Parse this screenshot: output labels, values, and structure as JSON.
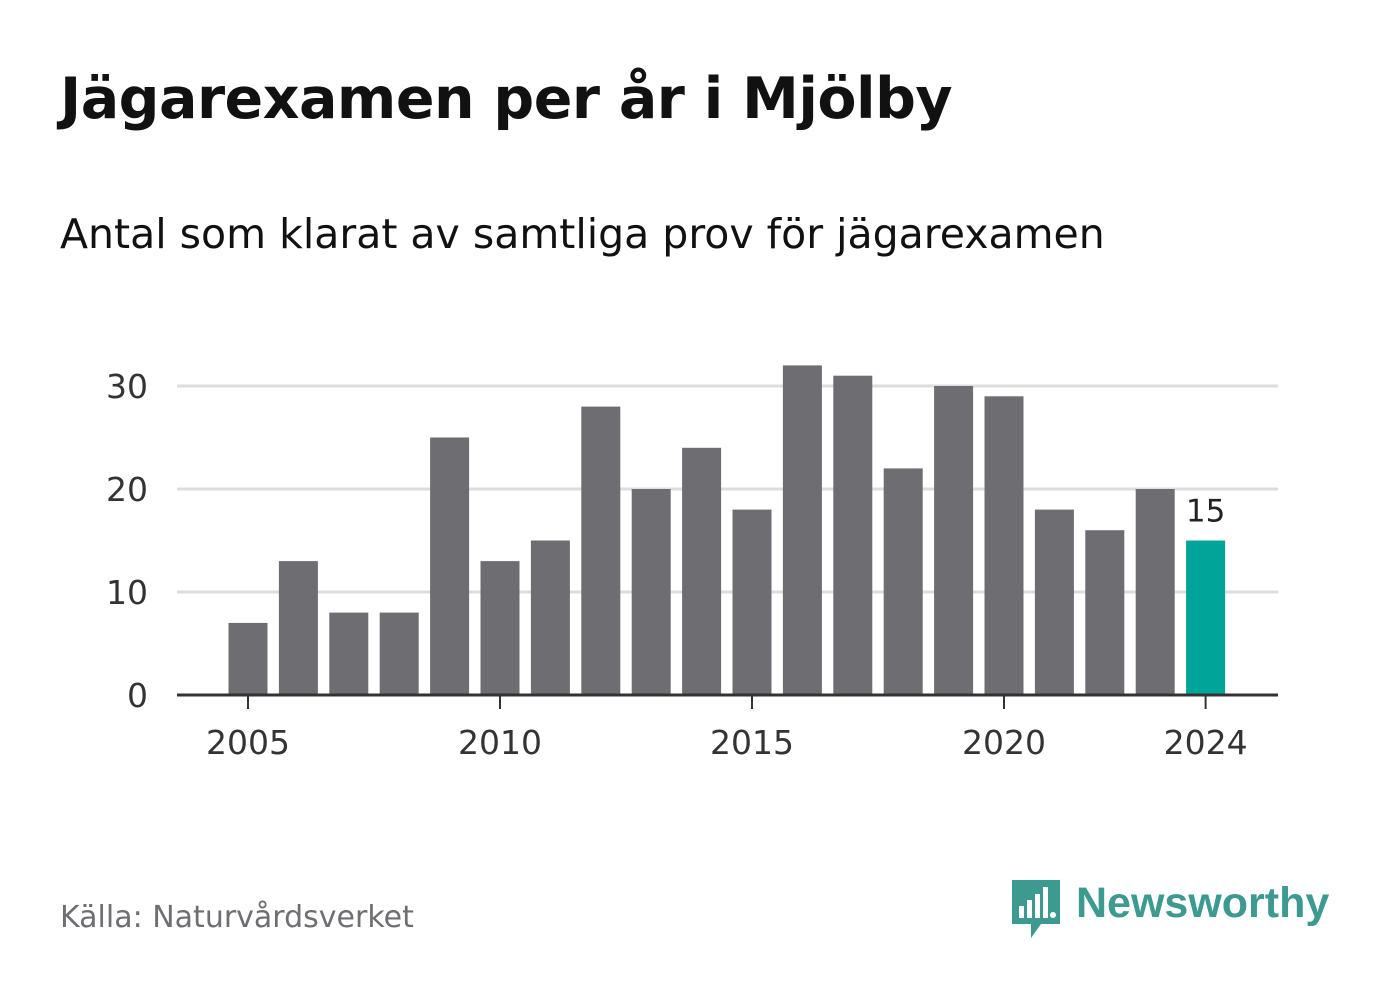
{
  "title": "Jägarexamen per år i Mjölby",
  "subtitle": "Antal som klarat av samtliga prov för jägarexamen",
  "source": "Källa: Naturvårdsverket",
  "brand": {
    "name": "Newsworthy",
    "icon": "newsworthy-logo-icon",
    "color": "#3c9a90"
  },
  "colors": {
    "bar": "#6e6d72",
    "highlight": "#00a498",
    "grid": "#dddddd",
    "axis": "#333333",
    "text": "#333333"
  },
  "chart_data": {
    "type": "bar",
    "x": [
      2005,
      2006,
      2007,
      2008,
      2009,
      2010,
      2011,
      2012,
      2013,
      2014,
      2015,
      2016,
      2017,
      2018,
      2019,
      2020,
      2021,
      2022,
      2023,
      2024
    ],
    "values": [
      7,
      13,
      8,
      8,
      25,
      13,
      15,
      28,
      20,
      24,
      18,
      32,
      31,
      22,
      30,
      29,
      18,
      16,
      20,
      15
    ],
    "highlight_index": 19,
    "data_labels": [
      {
        "index": 19,
        "text": "15"
      }
    ],
    "xticks": [
      "2005",
      "2010",
      "2015",
      "2020",
      "2024"
    ],
    "yticks": [
      "0",
      "10",
      "20",
      "30"
    ],
    "ylim": [
      0,
      32
    ],
    "grid": "horizontal"
  }
}
